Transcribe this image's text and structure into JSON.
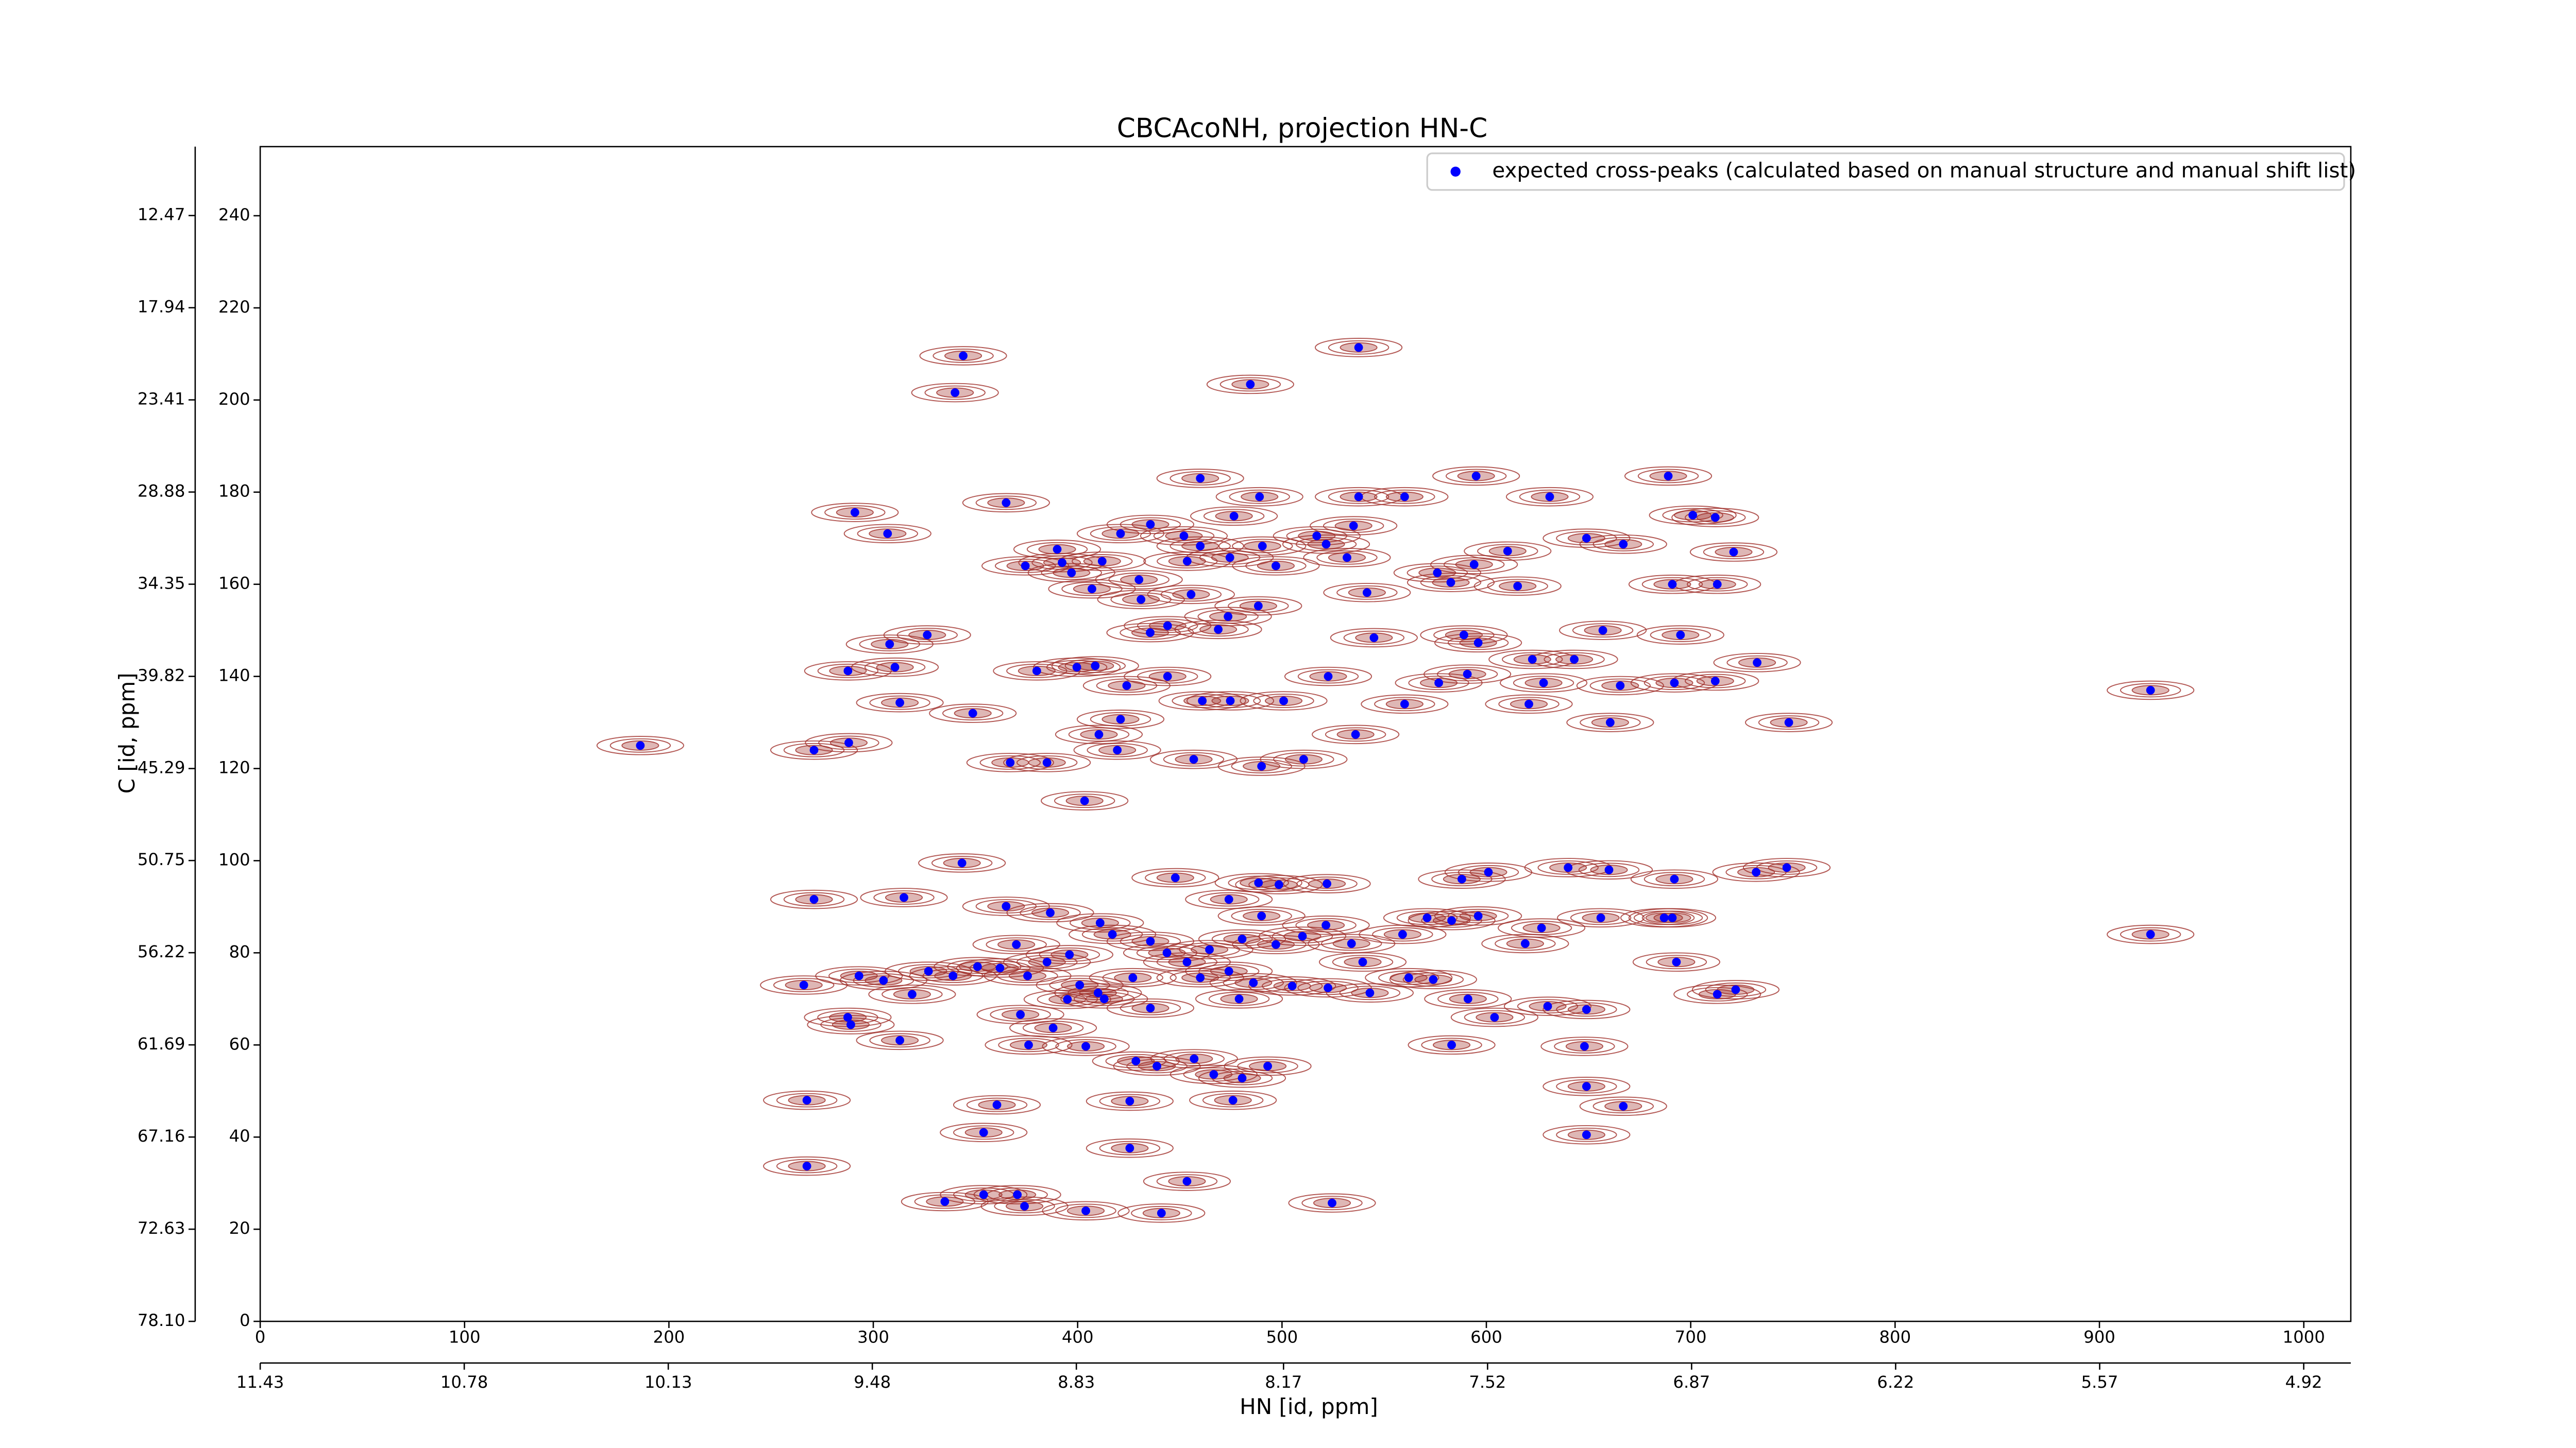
{
  "chart_data": {
    "type": "scatter",
    "title": "CBCAcoNH, projection HN-C",
    "xlabel": "HN [id, ppm]",
    "ylabel": "C [id, ppm]",
    "xlim": [
      0,
      1023
    ],
    "xticks": [
      0,
      100,
      200,
      300,
      400,
      500,
      600,
      700,
      800,
      900,
      1000
    ],
    "x2lim": [
      11.43,
      4.77
    ],
    "x2ticks": [
      11.43,
      10.78,
      10.13,
      9.48,
      8.83,
      8.17,
      7.52,
      6.87,
      6.22,
      5.57,
      4.92
    ],
    "ylim": [
      0,
      255
    ],
    "yticks": [
      0,
      20,
      40,
      60,
      80,
      100,
      120,
      140,
      160,
      180,
      200,
      220,
      240
    ],
    "y2lim": [
      78.1,
      8.38
    ],
    "y2ticks": [
      {
        "value": 78.1,
        "label": "78.10"
      },
      72.63,
      67.16,
      61.69,
      56.22,
      50.75,
      45.29,
      39.82,
      34.35,
      28.88,
      23.41,
      17.94,
      12.47
    ],
    "legend": "upper right",
    "contour_color": "#a0302a",
    "series": [
      {
        "name": "expected cross-peaks (calculated based on manual structure and manual shift list)",
        "color": "#0000ff",
        "x": [
          344,
          340,
          484.5,
          537.5,
          186,
          271,
          288,
          460,
          595,
          689,
          291,
          307,
          365,
          489,
          537.5,
          560,
          631,
          649,
          667,
          701,
          712,
          721,
          691,
          713,
          695,
          692,
          712,
          732.5,
          748,
          925,
          925,
          713,
          722,
          693,
          747,
          732,
          692,
          660,
          640,
          601,
          588,
          522,
          687,
          691,
          656,
          627,
          619,
          596,
          583,
          571,
          559,
          649,
          648,
          649,
          667,
          649,
          583,
          591,
          604,
          630,
          524.5,
          453.5,
          441,
          404,
          374,
          370.5,
          354,
          335,
          267.5,
          267.5,
          354,
          360.5,
          425.5,
          425.5,
          476,
          480.5,
          457,
          428.5,
          404,
          376,
          313,
          289,
          287.5,
          266,
          293,
          305,
          319,
          327,
          339,
          351,
          362,
          370,
          375.5,
          372,
          388,
          385,
          396,
          411,
          417,
          401,
          413,
          427,
          435.6,
          443.7,
          453.5,
          460,
          464.5,
          474,
          479,
          486,
          480.5,
          490,
          497,
          505,
          510,
          521.5,
          534,
          539.5,
          522.5,
          543,
          562,
          574,
          474,
          488.5,
          498.5,
          447.8,
          343.4,
          315,
          271,
          365,
          386.6,
          410,
          435.6,
          395,
          438.8,
          466.6,
          493,
          348.7,
          313,
          287.6,
          310.6,
          308,
          326.4,
          380,
          399.6,
          408.6,
          424,
          444,
          461,
          421,
          410.4,
          385,
          367,
          403.4,
          419.4,
          456.8,
          490,
          510.6,
          536,
          500.8,
          474.7,
          522.6,
          560,
          576.7,
          590.7,
          622.5,
          628,
          643,
          665.5,
          620.8,
          660.6,
          545,
          589,
          596,
          657,
          468.8,
          473.6,
          444,
          435.5,
          407,
          397,
          412,
          421,
          435.6,
          452,
          453.6,
          460,
          476.5,
          490.4,
          474.5,
          497,
          517,
          521.6,
          535,
          541.6,
          531.8,
          576,
          594,
          610.4,
          615.3,
          582.6,
          374.4,
          390,
          392.4,
          430,
          431,
          455.5,
          488.4
        ],
        "values": [
          209.6,
          201.6,
          203.4,
          211.4,
          125,
          124,
          125.6,
          183,
          183.5,
          183.5,
          175.6,
          171,
          177.7,
          179,
          179,
          179,
          179,
          170,
          168.7,
          175,
          174.5,
          167,
          160,
          160,
          149,
          138.6,
          139,
          143,
          130,
          137,
          84,
          71,
          72,
          78,
          98.5,
          97.5,
          96,
          98,
          98.5,
          97.5,
          96,
          95,
          87.6,
          87.6,
          87.6,
          85.4,
          82,
          88,
          87,
          87.6,
          84,
          67.7,
          59.7,
          51,
          46.7,
          40.5,
          60,
          70,
          66,
          68.4,
          25.7,
          30.4,
          23.5,
          24,
          25,
          27.5,
          27.5,
          26,
          33.7,
          48,
          41,
          47,
          37.6,
          47.8,
          48,
          52.8,
          57,
          56.5,
          59.7,
          60,
          61,
          64.4,
          66,
          73,
          75,
          74,
          71,
          76,
          75,
          77,
          76.7,
          81.8,
          75,
          66.6,
          63.7,
          78,
          79.6,
          86.5,
          84,
          73,
          70,
          74.6,
          82.5,
          80,
          78,
          74.6,
          80.7,
          76,
          70,
          73.5,
          83,
          88,
          81.8,
          72.8,
          83.6,
          86,
          82,
          78,
          72.4,
          71.3,
          74.6,
          74.2,
          91.6,
          95.2,
          94.8,
          96.3,
          99.5,
          92,
          91.6,
          90.1,
          88.7,
          71.3,
          68,
          69.9,
          55.4,
          53.6,
          55.4,
          132,
          134.3,
          141.2,
          142,
          147,
          149,
          141.2,
          142,
          142.3,
          138,
          140,
          134.7,
          130.7,
          127.4,
          121.3,
          121.3,
          113,
          124,
          122,
          120.5,
          122,
          127.4,
          134.7,
          134.7,
          140,
          134,
          138.6,
          140.5,
          143.7,
          138.6,
          143.7,
          138,
          134,
          130,
          148.4,
          149,
          147.3,
          150,
          150.2,
          153,
          151,
          149.5,
          159,
          162.5,
          165,
          171,
          173,
          170.5,
          165,
          168.3,
          174.8,
          168.3,
          165.8,
          164,
          170.5,
          168.7,
          172.7,
          158.2,
          165.8,
          162.5,
          164.3,
          167.2,
          159.6,
          160.4,
          164,
          167.6,
          164.7,
          161,
          156.7,
          157.8,
          155.3
        ]
      }
    ]
  }
}
